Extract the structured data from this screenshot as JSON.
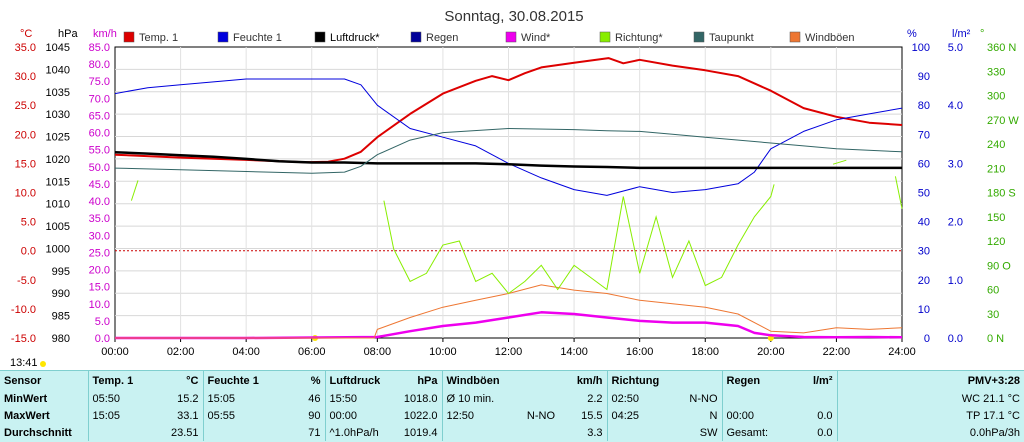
{
  "chart_data": {
    "type": "line",
    "title": "Sonntag, 30.08.2015",
    "x_ticks": [
      "00:00",
      "02:00",
      "04:00",
      "06:00",
      "08:00",
      "10:00",
      "12:00",
      "14:00",
      "16:00",
      "18:00",
      "20:00",
      "22:00",
      "24:00"
    ],
    "x_range_hours": [
      0,
      24
    ],
    "axes": {
      "temp": {
        "unit": "°C",
        "range": [
          -15,
          35
        ],
        "ticks": [
          "35.0",
          "30.0",
          "25.0",
          "20.0",
          "15.0",
          "10.0",
          "5.0",
          "0.0",
          "-5.0",
          "-10.0",
          "-15.0"
        ],
        "color": "#cc0000"
      },
      "press": {
        "unit": "hPa",
        "range": [
          980,
          1045
        ],
        "ticks": [
          "1045",
          "1040",
          "1035",
          "1030",
          "1025",
          "1020",
          "1015",
          "1010",
          "1005",
          "1000",
          "995",
          "990",
          "985",
          "980"
        ],
        "color": "#000000"
      },
      "speed": {
        "unit": "km/h",
        "range": [
          0,
          85
        ],
        "ticks": [
          "85.0",
          "80.0",
          "75.0",
          "70.0",
          "65.0",
          "60.0",
          "55.0",
          "50.0",
          "45.0",
          "40.0",
          "35.0",
          "30.0",
          "25.0",
          "20.0",
          "15.0",
          "10.0",
          "5.0",
          "0.0"
        ],
        "color": "#cc00cc"
      },
      "hum": {
        "unit": "%",
        "range": [
          0,
          100
        ],
        "ticks": [
          "100",
          "90",
          "80",
          "70",
          "60",
          "50",
          "40",
          "30",
          "20",
          "10",
          "0"
        ],
        "color": "#0000cc"
      },
      "rain": {
        "unit": "l/m²",
        "range": [
          0,
          5
        ],
        "ticks": [
          "5.0",
          "4.0",
          "3.0",
          "2.0",
          "1.0",
          "0.0"
        ],
        "color": "#0000cc"
      },
      "dir": {
        "unit": "°",
        "range": [
          0,
          360
        ],
        "ticks": [
          "360 N",
          "330",
          "300",
          "270 W",
          "240",
          "210",
          "180 S",
          "150",
          "120",
          "90 O",
          "60",
          "30",
          "0 N"
        ],
        "color": "#33aa00"
      }
    },
    "legend": [
      {
        "name": "Temp. 1",
        "color": "#dd0000"
      },
      {
        "name": "Feuchte 1",
        "color": "#0000dd"
      },
      {
        "name": "Luftdruck*",
        "color": "#000000"
      },
      {
        "name": "Regen",
        "color": "#000099"
      },
      {
        "name": "Wind*",
        "color": "#ee00ee"
      },
      {
        "name": "Richtung*",
        "color": "#88ee00"
      },
      {
        "name": "Taupunkt",
        "color": "#336666"
      },
      {
        "name": "Windböen",
        "color": "#ee7733"
      }
    ],
    "series": [
      {
        "name": "Temp. 1",
        "axis": "temp",
        "color": "#dd0000",
        "x": [
          0,
          2,
          4,
          5.8,
          6.5,
          7,
          7.5,
          8,
          9,
          10,
          11,
          11.5,
          12,
          12.5,
          13,
          14,
          15.05,
          15.5,
          16,
          17,
          18,
          19,
          20,
          21,
          22,
          23,
          24
        ],
        "y": [
          16.5,
          16.0,
          15.6,
          15.2,
          15.3,
          15.8,
          17.0,
          19.5,
          23.5,
          27.0,
          29.2,
          30.0,
          29.3,
          30.5,
          31.5,
          32.3,
          33.1,
          32.2,
          32.8,
          31.8,
          31.0,
          30.0,
          27.5,
          24.5,
          23.0,
          22.0,
          21.6
        ]
      },
      {
        "name": "Feuchte 1",
        "axis": "hum",
        "color": "#0000dd",
        "x": [
          0,
          1,
          2,
          3,
          4,
          5,
          6,
          7,
          7.5,
          8,
          9,
          10,
          11,
          12,
          13,
          14,
          15,
          16,
          17,
          18,
          19,
          19.5,
          20,
          21,
          22,
          23,
          24
        ],
        "y": [
          84,
          86,
          87,
          88,
          89,
          89,
          89,
          89,
          87,
          80,
          72,
          69,
          66,
          60,
          55,
          51,
          49,
          52,
          50,
          51,
          53,
          57,
          65,
          71,
          75,
          77,
          79
        ]
      },
      {
        "name": "Luftdruck*",
        "axis": "press",
        "color": "#000000",
        "x": [
          0,
          1,
          2,
          3,
          4,
          5,
          6,
          7,
          8,
          9,
          10,
          11,
          12,
          13,
          14,
          15,
          16,
          17,
          18,
          19,
          20,
          21,
          22,
          23,
          24
        ],
        "y": [
          1021.5,
          1021.2,
          1020.8,
          1020.5,
          1020.0,
          1019.5,
          1019.2,
          1019.2,
          1019.0,
          1019.0,
          1019.0,
          1019.0,
          1018.8,
          1018.5,
          1018.3,
          1018.2,
          1018.0,
          1018.0,
          1018.0,
          1018.0,
          1018.0,
          1018.0,
          1018.0,
          1018.0,
          1018.0
        ]
      },
      {
        "name": "Taupunkt",
        "axis": "temp",
        "color": "#336666",
        "x": [
          0,
          2,
          4,
          6,
          7,
          7.5,
          8,
          9,
          10,
          12,
          14,
          15,
          16,
          17,
          18,
          20,
          22,
          24
        ],
        "y": [
          14.2,
          13.9,
          13.6,
          13.3,
          13.5,
          14.5,
          16.5,
          19.0,
          20.3,
          21.0,
          20.8,
          20.6,
          20.5,
          20.0,
          19.5,
          18.5,
          17.5,
          17.0
        ]
      },
      {
        "name": "Wind*",
        "axis": "speed",
        "color": "#ee00ee",
        "x": [
          0,
          4,
          8,
          9,
          10,
          11,
          12,
          13,
          14,
          15,
          16,
          17,
          18,
          19,
          19.5,
          20,
          21,
          22,
          23,
          24
        ],
        "y": [
          0,
          0,
          0.3,
          2.0,
          3.5,
          4.5,
          6.0,
          7.5,
          7.0,
          6.0,
          5.0,
          4.5,
          4.5,
          3.5,
          1.5,
          0.8,
          0.3,
          0.2,
          0.3,
          0.2
        ]
      },
      {
        "name": "Windböen",
        "axis": "speed",
        "color": "#ee7733",
        "x": [
          0,
          7.9,
          8,
          9,
          10,
          11,
          12,
          13,
          14,
          15,
          16,
          17,
          18,
          19,
          20,
          21,
          22,
          23,
          24
        ],
        "y": [
          0,
          0,
          2.5,
          6.0,
          9.0,
          11.0,
          13.0,
          15.5,
          14.0,
          13.0,
          11.0,
          10.0,
          9.0,
          7.0,
          2.0,
          1.5,
          3.0,
          2.5,
          3.0
        ]
      },
      {
        "name": "Richtung*",
        "axis": "dir",
        "color": "#88ee00",
        "x": [
          0.5,
          0.7,
          8.2,
          8.5,
          9,
          9.5,
          10,
          10.5,
          11,
          11.5,
          12,
          12.5,
          13,
          13.5,
          14,
          14.5,
          15,
          15.5,
          16,
          16.5,
          17,
          17.5,
          18,
          18.5,
          19,
          19.5,
          20,
          20.1,
          21.9,
          22.3,
          23.8,
          24
        ],
        "y": [
          170,
          195,
          170,
          110,
          70,
          80,
          115,
          120,
          70,
          80,
          55,
          70,
          90,
          60,
          90,
          75,
          60,
          175,
          80,
          150,
          75,
          120,
          65,
          75,
          115,
          150,
          175,
          190,
          215,
          220,
          200,
          160
        ]
      }
    ]
  },
  "time_stamp": "13:41",
  "stats": {
    "headers": {
      "sensor": "Sensor",
      "temp": "Temp. 1",
      "temp_unit": "°C",
      "hum": "Feuchte 1",
      "hum_unit": "%",
      "press": "Luftdruck",
      "press_unit": "hPa",
      "gust": "Windböen",
      "gust_unit": "km/h",
      "dir": "Richtung",
      "rain": "Regen",
      "rain_unit": "l/m²",
      "pmv": "PMV+3:28"
    },
    "rows": [
      {
        "label": "MinWert",
        "temp_t": "05:50",
        "temp_v": "15.2",
        "hum_t": "15:05",
        "hum_v": "46",
        "press_t": "15:50",
        "press_v": "1018.0",
        "gust_t": "Ø 10 min.",
        "gust_d": "",
        "gust_v": "2.2",
        "dir_t": "02:50",
        "dir_v": "N-NO",
        "rain_t": "",
        "rain_v": "",
        "extra": "WC 21.1 °C"
      },
      {
        "label": "MaxWert",
        "temp_t": "15:05",
        "temp_v": "33.1",
        "hum_t": "05:55",
        "hum_v": "90",
        "press_t": "00:00",
        "press_v": "1022.0",
        "gust_t": "12:50",
        "gust_d": "N-NO",
        "gust_v": "15.5",
        "dir_t": "04:25",
        "dir_v": "N",
        "rain_t": "00:00",
        "rain_v": "0.0",
        "extra": "TP 17.1 °C"
      },
      {
        "label": "Durchschnitt",
        "temp_t": "",
        "temp_v": "23.51",
        "hum_t": "",
        "hum_v": "71",
        "press_t": "^1.0hPa/h",
        "press_v": "1019.4",
        "gust_t": "",
        "gust_d": "",
        "gust_v": "3.3",
        "dir_t": "",
        "dir_v": "SW",
        "rain_t": "Gesamt:",
        "rain_v": "0.0",
        "extra": "0.0hPa/3h"
      }
    ]
  }
}
